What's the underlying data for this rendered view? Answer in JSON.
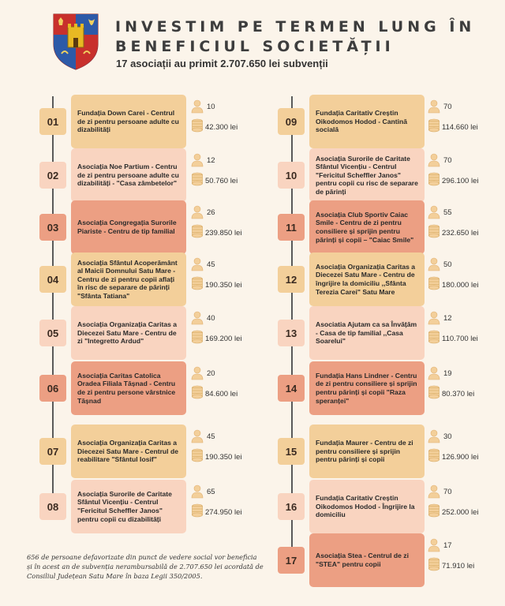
{
  "header": {
    "title": "INVESTIM PE TERMEN LUNG ÎN BENEFICIUL SOCIETĂȚII",
    "subtitle": "17 asociații au primit 2.707.650 lei subvenții"
  },
  "colors": {
    "background": "#fbf4ea",
    "tan": "#f3cf9a",
    "light_peach": "#f9d4c0",
    "salmon": "#ec9f83",
    "crest_red": "#c8302c",
    "crest_blue": "#2d5aa8",
    "crest_gold": "#e8b923"
  },
  "entries_left": [
    {
      "num": "01",
      "name": "Fundația Down Carei - Centrul de zi pentru persoane adulte cu dizabilități",
      "persons": "10",
      "amount": "42.300 lei",
      "tone": 1
    },
    {
      "num": "02",
      "name": "Asociația Noe Partium - Centru de zi pentru persoane adulte cu dizabilități - \"Casa zâmbetelor\"",
      "persons": "12",
      "amount": "50.760 lei",
      "tone": 2
    },
    {
      "num": "03",
      "name": "Asociația Congregația Surorile Piariste - Centru de tip familial",
      "persons": "26",
      "amount": "239.850 lei",
      "tone": 3
    },
    {
      "num": "04",
      "name": "Asociația Sfântul Acoperământ al Maicii Domnului Satu Mare - Centru de zi pentru copii aflați în risc de separare de părinți \"Sfânta Tatiana\"",
      "persons": "45",
      "amount": "190.350 lei",
      "tone": 1
    },
    {
      "num": "05",
      "name": "Asociația Organizația Caritas a Diecezei Satu Mare - Centru de zi \"Integretto Ardud\"",
      "persons": "40",
      "amount": "169.200 lei",
      "tone": 2
    },
    {
      "num": "06",
      "name": "Asociația Caritas Catolica Oradea Filiala Tășnad - Centru de zi pentru persone vârstnice Tășnad",
      "persons": "20",
      "amount": "84.600 lei",
      "tone": 3
    },
    {
      "num": "07",
      "name": "Asociația Organizația Caritas a Diecezei Satu Mare - Centrul de reabilitare \"Sfântul Iosif\"",
      "persons": "45",
      "amount": "190.350 lei",
      "tone": 1
    },
    {
      "num": "08",
      "name": "Asociația Surorile de Caritate Sfântul Vicențiu - Centrul \"Fericitul Scheffler Janos\" pentru copii cu dizabilități",
      "persons": "65",
      "amount": "274.950 lei",
      "tone": 2
    }
  ],
  "entries_right": [
    {
      "num": "09",
      "name": "Fundația Caritativ Creștin Oikodomos Hodod - Cantină socială",
      "persons": "70",
      "amount": "114.660 lei",
      "tone": 1
    },
    {
      "num": "10",
      "name": "Asociația Surorile de Caritate Sfântul Vicențiu - Centrul \"Fericitul Scheffler Janos\" pentru copii cu risc de separare de părinți",
      "persons": "70",
      "amount": "296.100 lei",
      "tone": 2
    },
    {
      "num": "11",
      "name": "Asociația Club Sportiv Caiac Smile - Centru de zi pentru consiliere și sprijin pentru părinți și copii – \"Caiac Smile\"",
      "persons": "55",
      "amount": "232.650 lei",
      "tone": 3
    },
    {
      "num": "12",
      "name": "Asociația Organizația Caritas a Diecezei Satu Mare - Centru de îngrijire la domiciliu ,,Sfânta Terezia Carei\" Satu Mare",
      "persons": "50",
      "amount": "180.000 lei",
      "tone": 1
    },
    {
      "num": "13",
      "name": "Asociatia Ajutam ca sa Învățăm - Casa de tip familial ,,Casa Soarelui\"",
      "persons": "12",
      "amount": "110.700 lei",
      "tone": 2
    },
    {
      "num": "14",
      "name": "Fundația Hans Lindner - Centru de zi pentru consiliere și sprijin pentru părinți și copii \"Raza speranței\"",
      "persons": "19",
      "amount": "80.370 lei",
      "tone": 3
    },
    {
      "num": "15",
      "name": "Fundația Maurer - Centru de zi pentru consiliere și sprijin pentru părinți și copii",
      "persons": "30",
      "amount": "126.900 lei",
      "tone": 1
    },
    {
      "num": "16",
      "name": "Fundația Caritativ Creștin Oikodomos Hodod - Îngrijire la domiciliu",
      "persons": "70",
      "amount": "252.000 lei",
      "tone": 2
    },
    {
      "num": "17",
      "name": "Asociația Stea - Centrul de zi \"STEA\" pentru copii",
      "persons": "17",
      "amount": "71.910 lei",
      "tone": 3
    }
  ],
  "footer": {
    "text": "656 de persoane defavorizate din punct de vedere social vor beneficia și în acest an de subvenția nerambursabilă de 2.707.650 lei acordată de Consiliul Județean Satu Mare în baza Legii 350/2005."
  },
  "icons": {
    "crest": "county-crest-icon",
    "person": "person-icon",
    "coins": "coin-stack-icon"
  }
}
